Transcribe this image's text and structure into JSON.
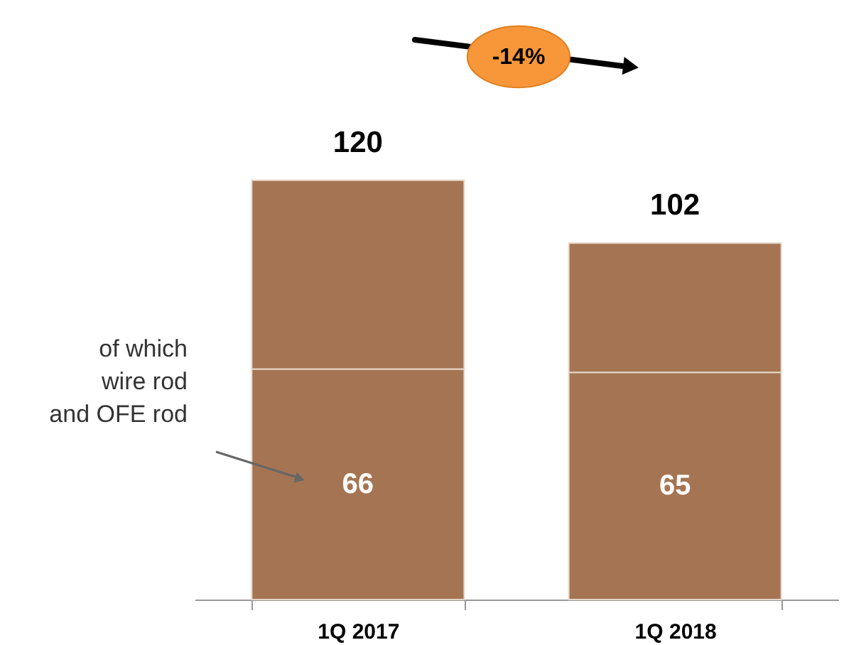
{
  "chart_data": {
    "type": "bar",
    "stacked": true,
    "categories": [
      "1Q 2017",
      "1Q 2018"
    ],
    "series": [
      {
        "color": "#a57553",
        "values": [
          66,
          65
        ],
        "value_labels": [
          "66",
          "65"
        ]
      },
      {
        "color": "#a57553",
        "values": [
          54,
          37
        ]
      }
    ],
    "totals": [
      "120",
      "102"
    ],
    "annotations": [
      "-14%",
      "of which\nwire rod\nand OFE rod"
    ],
    "grid": false
  }
}
